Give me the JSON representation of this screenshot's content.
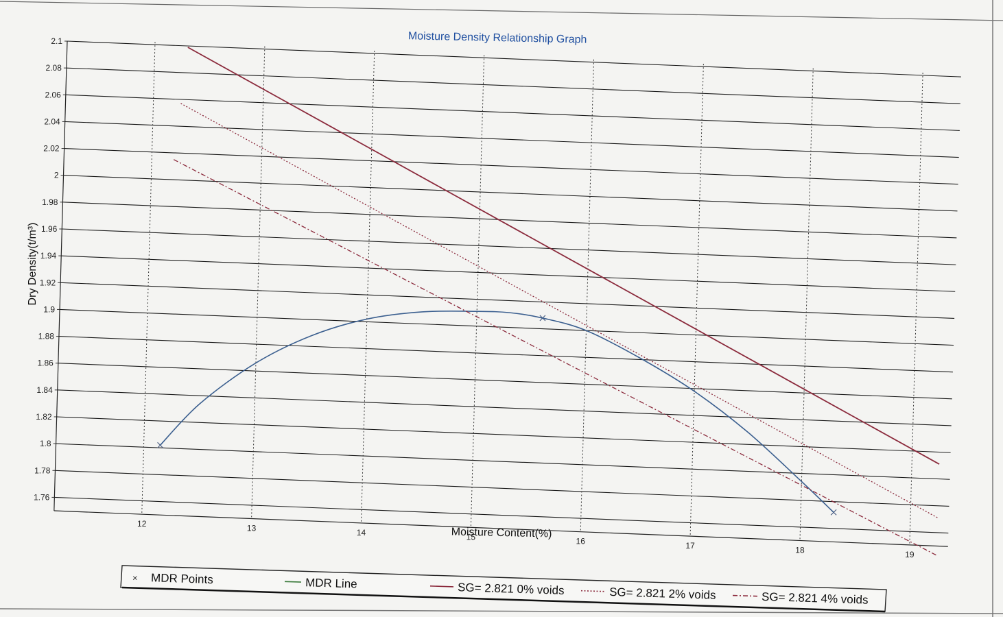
{
  "chart_data": {
    "type": "line",
    "title": "Moisture Density Relationship Graph",
    "xlabel": "Moisture Content(%)",
    "ylabel": "Dry Density(t/m³)",
    "xlim": [
      11.2,
      19.25
    ],
    "ylim": [
      1.75,
      2.1
    ],
    "x_ticks": [
      12,
      13,
      14,
      15,
      16,
      17,
      18,
      19
    ],
    "y_ticks": [
      2.1,
      2.08,
      2.06,
      2.04,
      2.02,
      2,
      1.98,
      1.96,
      1.94,
      1.92,
      1.9,
      1.88,
      1.86,
      1.84,
      1.82,
      1.8,
      1.78,
      1.76
    ],
    "y_tick_labels": [
      "2.1",
      "2.08",
      "2.06",
      "2.04",
      "2.02",
      "2",
      "1.98",
      "1.96",
      "1.94",
      "1.92",
      "1.9",
      "1.88",
      "1.86",
      "1.84",
      "1.82",
      "1.8",
      "1.78",
      "1.76"
    ],
    "grid": true,
    "legend_position": "bottom",
    "series": [
      {
        "name": "MDR Points",
        "kind": "points",
        "color": "#556688",
        "x": [
          12.15,
          15.6,
          18.3
        ],
        "y": [
          1.802,
          1.908,
          1.772
        ]
      },
      {
        "name": "MDR Line",
        "kind": "line",
        "color": "#3b5f8f",
        "legend_color": "#3a7a3a",
        "x": [
          12.15,
          12.5,
          13.0,
          13.5,
          14.0,
          14.5,
          15.0,
          15.3,
          15.6,
          16.0,
          16.5,
          17.0,
          17.5,
          18.0,
          18.3
        ],
        "y": [
          1.802,
          1.834,
          1.866,
          1.888,
          1.902,
          1.909,
          1.911,
          1.911,
          1.908,
          1.9,
          1.881,
          1.858,
          1.829,
          1.794,
          1.772
        ]
      },
      {
        "name": "SG= 2.821 0% voids",
        "kind": "line",
        "style": "solid",
        "color": "#8b2a3c",
        "x": [
          12.3,
          19.25
        ],
        "y": [
          2.099,
          1.811
        ]
      },
      {
        "name": "SG= 2.821 2% voids",
        "kind": "line",
        "style": "dotted",
        "color": "#8b2a3c",
        "x": [
          12.25,
          19.25
        ],
        "y": [
          2.057,
          1.771
        ]
      },
      {
        "name": "SG= 2.821 4% voids",
        "kind": "line",
        "style": "dashdot",
        "color": "#8b2a3c",
        "x": [
          12.2,
          19.25
        ],
        "y": [
          2.015,
          1.743
        ]
      }
    ]
  }
}
